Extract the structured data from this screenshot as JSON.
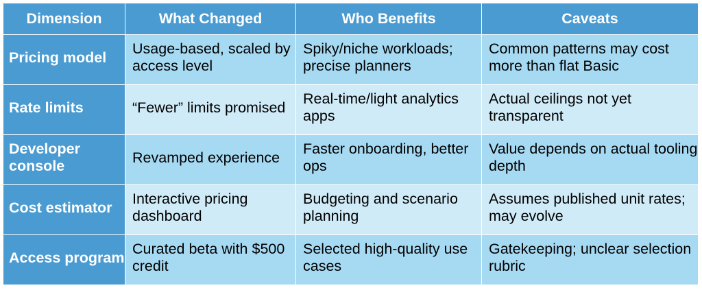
{
  "table": {
    "headers": [
      "Dimension",
      "What Changed",
      "Who Benefits",
      "Caveats"
    ],
    "rows": [
      {
        "dimension": "Pricing model",
        "what_changed": "Usage-based, scaled by access level",
        "who_benefits": "Spiky/niche workloads; precise planners",
        "caveats": "Common patterns may cost more than flat Basic"
      },
      {
        "dimension": "Rate limits",
        "what_changed": "“Fewer” limits promised",
        "who_benefits": "Real-time/light analytics apps",
        "caveats": "Actual ceilings not yet transparent"
      },
      {
        "dimension": "Developer console",
        "what_changed": "Revamped experience",
        "who_benefits": "Faster onboarding, better ops",
        "caveats": "Value depends on actual tooling depth"
      },
      {
        "dimension": "Cost estimator",
        "what_changed": "Interactive pricing dashboard",
        "who_benefits": "Budgeting and scenario planning",
        "caveats": "Assumes published unit rates; may evolve"
      },
      {
        "dimension": "Access program",
        "what_changed": "Curated beta with $500 credit",
        "who_benefits": "Selected high-quality use cases",
        "caveats": "Gatekeeping; unclear selection rubric"
      }
    ]
  },
  "colors": {
    "header": "#4a9bd1",
    "row_odd": "#a6daf3",
    "row_even": "#d0ebf8"
  }
}
